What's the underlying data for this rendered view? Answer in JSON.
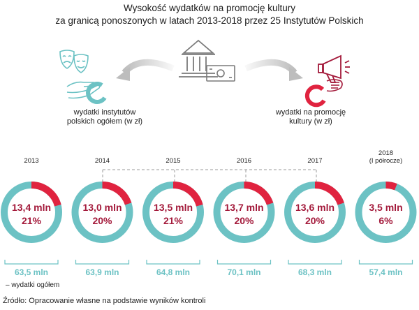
{
  "header": {
    "title_line1": "Wysokość wydatków na promocję kultury",
    "title_line2": "za granicą ponoszonych w latach 2013-2018 przez 25 Instytutów Polskich"
  },
  "legend": {
    "left_label_line1": "wydatki instytutów",
    "left_label_line2": "polskich ogółem (w zł)",
    "right_label_line1": "wydatki na promocję",
    "right_label_line2": "kultury (w zł)"
  },
  "colors": {
    "teal": "#6cc2c4",
    "red": "#e0233f",
    "dark_red": "#a3193a",
    "gray_line": "#9a9a9a",
    "icon_gray": "#7a7a7a"
  },
  "icons": [
    "theatre-masks-icon",
    "hand-icon",
    "institution-building-icon",
    "money-banknote-icon",
    "megaphone-icon",
    "hand-icon"
  ],
  "chart_data": {
    "type": "pie",
    "categories": [
      "2013",
      "2014",
      "2015",
      "2016",
      "2017",
      "2018"
    ],
    "category_lines": [
      [
        "2013"
      ],
      [
        "2014"
      ],
      [
        "2015"
      ],
      [
        "2016"
      ],
      [
        "2017"
      ],
      [
        "2018",
        "(I półrocze)"
      ]
    ],
    "series": [
      {
        "name": "wydatki na promocję kultury (w zł)",
        "values": [
          13.4,
          13.0,
          13.5,
          13.7,
          13.6,
          3.5
        ],
        "labels": [
          "13,4 mln",
          "13,0 mln",
          "13,5 mln",
          "13,7 mln",
          "13,6 mln",
          "3,5 mln"
        ]
      },
      {
        "name": "wydatki instytutów polskich ogółem (w zł)",
        "values": [
          63.5,
          63.9,
          64.8,
          70.1,
          68.3,
          57.4
        ],
        "labels": [
          "63,5 mln",
          "63,9 mln",
          "64,8 mln",
          "70,1 mln",
          "68,3 mln",
          "57,4 mln"
        ]
      }
    ],
    "shares": [
      21,
      20,
      21,
      20,
      20,
      6
    ],
    "share_labels": [
      "21%",
      "20%",
      "21%",
      "20%",
      "20%",
      "6%"
    ],
    "totals_note": "– wydatki ogółem"
  },
  "footer": {
    "source": "Źródło: Opracowanie własne na podstawie wyników kontroli"
  }
}
